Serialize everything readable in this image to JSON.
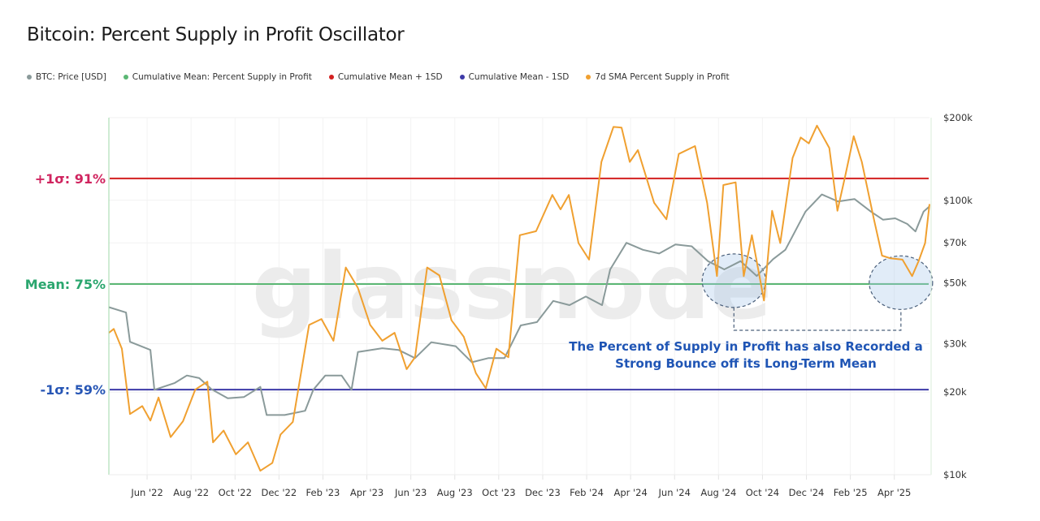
{
  "title": "Bitcoin: Percent Supply in Profit Oscillator",
  "legend": [
    {
      "label": "BTC: Price [USD]",
      "color": "#8a9a9a"
    },
    {
      "label": "Cumulative Mean: Percent Supply in Profit",
      "color": "#5bb774"
    },
    {
      "label": "Cumulative Mean + 1SD",
      "color": "#d32020"
    },
    {
      "label": "Cumulative Mean - 1SD",
      "color": "#3d3aa8"
    },
    {
      "label": "7d SMA Percent Supply in Profit",
      "color": "#f0a030"
    }
  ],
  "watermark": "glassnode",
  "chart_data": {
    "type": "line",
    "title": "Bitcoin: Percent Supply in Profit Oscillator",
    "x_units": "months since Jan 2022",
    "xlim": [
      3.26,
      40.6
    ],
    "x_ticks": [
      {
        "t": 5,
        "label": "Jun '22"
      },
      {
        "t": 7,
        "label": "Aug '22"
      },
      {
        "t": 9,
        "label": "Oct '22"
      },
      {
        "t": 11,
        "label": "Dec '22"
      },
      {
        "t": 13,
        "label": "Feb '23"
      },
      {
        "t": 15,
        "label": "Apr '23"
      },
      {
        "t": 17,
        "label": "Jun '23"
      },
      {
        "t": 19,
        "label": "Aug '23"
      },
      {
        "t": 21,
        "label": "Oct '23"
      },
      {
        "t": 23,
        "label": "Dec '23"
      },
      {
        "t": 25,
        "label": "Feb '24"
      },
      {
        "t": 27,
        "label": "Apr '24"
      },
      {
        "t": 29,
        "label": "Jun '24"
      },
      {
        "t": 31,
        "label": "Aug '24"
      },
      {
        "t": 33,
        "label": "Oct '24"
      },
      {
        "t": 35,
        "label": "Dec '24"
      },
      {
        "t": 37,
        "label": "Feb '25"
      },
      {
        "t": 39,
        "label": "Apr '25"
      }
    ],
    "price_axis": {
      "scale": "log",
      "ylim": [
        10000,
        200000
      ],
      "ticks": [
        {
          "v": 200000,
          "label": "$200k"
        },
        {
          "v": 100000,
          "label": "$100k"
        },
        {
          "v": 70000,
          "label": "$70k"
        },
        {
          "v": 50000,
          "label": "$50k"
        },
        {
          "v": 30000,
          "label": "$30k"
        },
        {
          "v": 20000,
          "label": "$20k"
        },
        {
          "v": 10000,
          "label": "$10k"
        }
      ]
    },
    "percent_axis": {
      "ylim": [
        46.1,
        100.2
      ]
    },
    "reference_lines": [
      {
        "name": "Cumulative Mean + 1SD",
        "value": 91,
        "label": "+1σ: 91%",
        "color": "#d32020",
        "label_color": "#d0245f"
      },
      {
        "name": "Cumulative Mean: Percent Supply in Profit",
        "value": 75,
        "label": "Mean: 75%",
        "color": "#5bb774",
        "label_color": "#2aa66e"
      },
      {
        "name": "Cumulative Mean - 1SD",
        "value": 59,
        "label": "-1σ: 59%",
        "color": "#3d3aa8",
        "label_color": "#2756b5"
      }
    ],
    "series": [
      {
        "name": "BTC: Price [USD]",
        "axis": "price",
        "color": "#8a9a9a",
        "t": [
          3.26,
          4.04,
          4.22,
          5.15,
          5.33,
          6.26,
          6.81,
          7.37,
          7.93,
          8.67,
          9.41,
          10.15,
          10.44,
          11.26,
          12.19,
          12.56,
          13.11,
          13.85,
          14.3,
          14.59,
          15.7,
          16.44,
          17.19,
          17.93,
          19.04,
          19.78,
          20.52,
          21.26,
          22.0,
          22.74,
          23.48,
          24.22,
          24.96,
          25.7,
          26.07,
          26.81,
          27.56,
          28.3,
          29.04,
          29.78,
          30.52,
          31.26,
          32.0,
          32.74,
          33.48,
          34.04,
          34.96,
          35.7,
          36.44,
          37.19,
          37.93,
          38.48,
          39.04,
          39.59,
          39.96,
          40.33,
          40.6
        ],
        "values": [
          40800,
          39000,
          30500,
          28500,
          20400,
          21600,
          23000,
          22500,
          20500,
          19000,
          19200,
          20900,
          16500,
          16500,
          17100,
          20400,
          23000,
          23000,
          20400,
          28000,
          28900,
          28500,
          26600,
          30400,
          29400,
          25700,
          26600,
          26600,
          35000,
          36000,
          43000,
          41500,
          44600,
          41500,
          56000,
          70000,
          66000,
          64000,
          69000,
          68000,
          60000,
          56000,
          60000,
          53000,
          61000,
          66000,
          91000,
          105000,
          99000,
          101000,
          91000,
          85000,
          86000,
          82000,
          77000,
          91000,
          95000
        ]
      },
      {
        "name": "7d SMA Percent Supply in Profit",
        "axis": "percent",
        "color": "#f0a030",
        "t": [
          3.26,
          3.48,
          3.85,
          4.22,
          4.78,
          5.15,
          5.52,
          6.07,
          6.63,
          7.19,
          7.74,
          8.0,
          8.48,
          9.04,
          9.59,
          10.15,
          10.7,
          11.07,
          11.63,
          12.37,
          12.93,
          13.48,
          14.04,
          14.59,
          15.15,
          15.7,
          16.26,
          16.81,
          17.19,
          17.74,
          18.3,
          18.85,
          19.41,
          19.96,
          20.41,
          20.89,
          21.44,
          21.96,
          22.7,
          23.44,
          23.81,
          24.19,
          24.63,
          25.11,
          25.67,
          26.22,
          26.59,
          26.96,
          27.33,
          28.07,
          28.63,
          29.19,
          29.93,
          30.48,
          30.93,
          31.22,
          31.78,
          32.15,
          32.52,
          33.07,
          33.44,
          33.81,
          34.37,
          34.74,
          35.11,
          35.48,
          36.04,
          36.41,
          36.78,
          37.15,
          37.52,
          38.07,
          38.44,
          38.81,
          39.37,
          39.81,
          40.11,
          40.4,
          40.6
        ],
        "values": [
          67.6,
          68.2,
          65.2,
          55.3,
          56.5,
          54.3,
          57.8,
          51.8,
          54.2,
          59.0,
          60.2,
          51.0,
          52.8,
          49.2,
          51.0,
          46.7,
          47.9,
          52.2,
          54.1,
          68.8,
          69.7,
          66.4,
          77.5,
          74.4,
          68.8,
          66.4,
          67.6,
          62.1,
          63.9,
          77.5,
          76.3,
          69.5,
          67.0,
          61.5,
          59.2,
          65.2,
          63.9,
          82.4,
          83.0,
          88.5,
          86.3,
          88.5,
          81.2,
          78.7,
          93.5,
          98.8,
          98.7,
          93.5,
          95.3,
          87.3,
          84.8,
          94.7,
          95.9,
          87.3,
          76.2,
          90.0,
          90.4,
          76.2,
          82.4,
          72.5,
          86.1,
          81.2,
          94.1,
          97.2,
          96.3,
          99.0,
          95.6,
          86.1,
          91.6,
          97.4,
          93.5,
          84.8,
          79.3,
          78.9,
          78.7,
          76.2,
          78.5,
          81.2,
          87.1
        ]
      }
    ],
    "annotation": {
      "lines": [
        "The Percent of Supply in Profit has also Recorded a",
        "Strong Bounce off its Long-Term Mean"
      ],
      "highlight_regions": [
        {
          "t_center": 31.7,
          "pct_center": 75.5
        },
        {
          "t_center": 39.3,
          "pct_center": 75.2
        }
      ]
    }
  }
}
